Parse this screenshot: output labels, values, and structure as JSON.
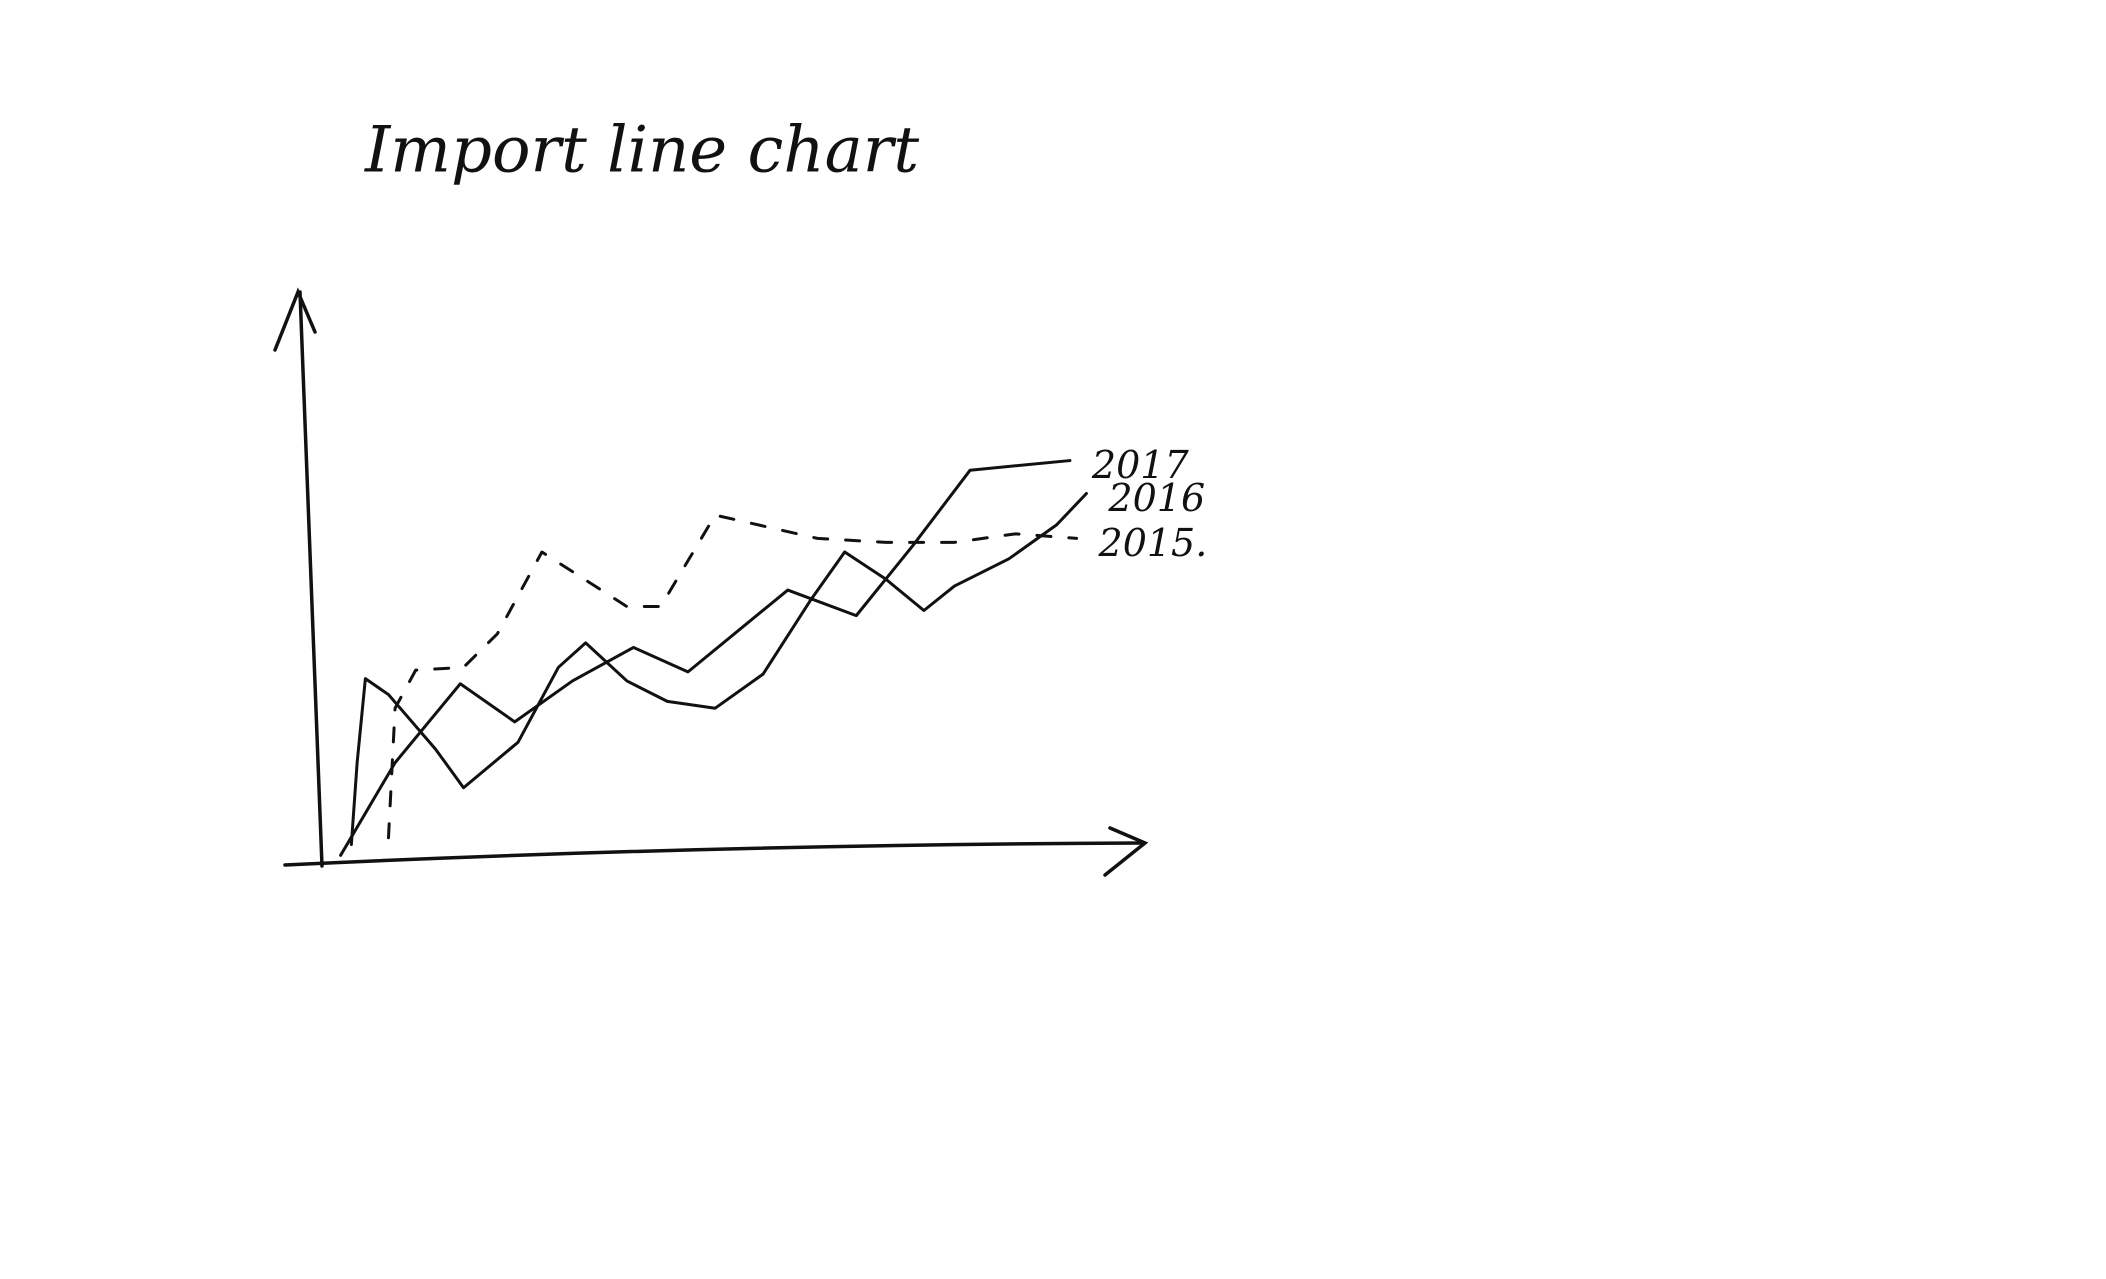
{
  "chart_data": {
    "type": "line",
    "title": "Import line chart",
    "xlim": [
      0,
      100
    ],
    "ylim": [
      0,
      100
    ],
    "series": [
      {
        "name": "2017",
        "color": "#111111",
        "linestyle": "solid",
        "x": [
          2.5,
          9.1,
          17,
          23.6,
          30.6,
          38,
          44.6,
          56.7,
          65,
          71.9,
          78.8,
          90.9
        ],
        "values": [
          1,
          17.3,
          31.2,
          24.5,
          31.7,
          37.6,
          33.3,
          47.7,
          43.2,
          55.6,
          68.8,
          70.5
        ]
      },
      {
        "name": "2016",
        "color": "#111111",
        "linestyle": "solid",
        "x": [
          3.8,
          4.5,
          5.5,
          8.3,
          14,
          17.4,
          24,
          28.9,
          32.2,
          37.2,
          42.1,
          47.9,
          53.7,
          59.5,
          63.6,
          68.6,
          73.2,
          76.9,
          83.5,
          89.3,
          92.9
        ],
        "values": [
          2.9,
          17.3,
          32.1,
          29.3,
          19.7,
          12.9,
          20.9,
          34.1,
          38.4,
          31.7,
          28.1,
          26.9,
          32.9,
          46,
          54.4,
          49.6,
          44.1,
          48.4,
          53.2,
          59.2,
          64.7
        ]
      },
      {
        "name": "2015.",
        "color": "#111111",
        "linestyle": "dashed",
        "x": [
          8.3,
          9.1,
          11.6,
          17.4,
          21.5,
          26.9,
          37.2,
          41.3,
          47.9,
          60.3,
          68.6,
          76.9,
          84.3,
          91.7
        ],
        "values": [
          4.1,
          26.9,
          33.6,
          34.1,
          40,
          54.4,
          44.8,
          44.8,
          60.9,
          56.8,
          56.1,
          56.1,
          57.6,
          56.8
        ]
      }
    ]
  }
}
